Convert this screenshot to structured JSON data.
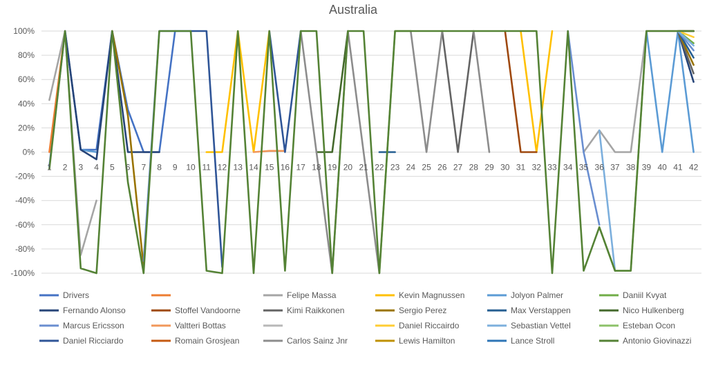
{
  "chart_data": {
    "type": "line",
    "title": "Australia",
    "xlabel": "",
    "ylabel": "",
    "ylim": [
      -100,
      100
    ],
    "yticks": [
      "100%",
      "80%",
      "60%",
      "40%",
      "20%",
      "0%",
      "-20%",
      "-40%",
      "-60%",
      "-80%",
      "-100%"
    ],
    "ytick_values": [
      100,
      80,
      60,
      40,
      20,
      0,
      -20,
      -40,
      -60,
      -80,
      -100
    ],
    "categories": [
      "1",
      "2",
      "3",
      "4",
      "5",
      "6",
      "7",
      "8",
      "9",
      "10",
      "11",
      "12",
      "13",
      "14",
      "15",
      "16",
      "17",
      "18",
      "19",
      "20",
      "21",
      "22",
      "23",
      "24",
      "25",
      "26",
      "27",
      "28",
      "29",
      "30",
      "31",
      "32",
      "33",
      "34",
      "35",
      "36",
      "37",
      "38",
      "39",
      "40",
      "41",
      "42"
    ],
    "grid": true,
    "legend_position": "bottom",
    "series": [
      {
        "name": "Drivers",
        "color": "#4472C4",
        "values": [
          -12,
          100,
          2,
          2,
          100,
          35,
          0,
          0,
          100,
          100,
          null,
          null,
          null,
          null,
          null,
          null,
          null,
          null,
          null,
          null,
          null,
          null,
          null,
          null,
          null,
          null,
          null,
          null,
          null,
          null,
          null,
          null,
          null,
          null,
          null,
          null,
          null,
          null,
          null,
          null,
          null,
          null
        ]
      },
      {
        "name": "",
        "color": "#ED7D31",
        "values": [
          0,
          100,
          null,
          null,
          null,
          null,
          null,
          null,
          null,
          null,
          null,
          null,
          null,
          null,
          null,
          null,
          null,
          null,
          null,
          null,
          null,
          null,
          null,
          null,
          null,
          null,
          null,
          null,
          null,
          null,
          null,
          null,
          null,
          null,
          null,
          null,
          null,
          null,
          null,
          null,
          null,
          null
        ]
      },
      {
        "name": "Felipe Massa",
        "color": "#A5A5A5",
        "values": [
          43,
          100,
          -85,
          -40,
          null,
          null,
          null,
          null,
          null,
          null,
          null,
          null,
          null,
          null,
          null,
          null,
          null,
          null,
          null,
          null,
          null,
          null,
          null,
          null,
          null,
          null,
          null,
          null,
          null,
          null,
          null,
          null,
          null,
          null,
          0,
          18,
          0,
          0,
          100,
          100,
          100,
          100
        ]
      },
      {
        "name": "Kevin Magnussen",
        "color": "#FFC000",
        "values": [
          null,
          null,
          null,
          null,
          null,
          null,
          null,
          null,
          null,
          null,
          0,
          0,
          100,
          0,
          100,
          null,
          null,
          null,
          null,
          null,
          null,
          null,
          null,
          null,
          null,
          null,
          null,
          null,
          null,
          null,
          100,
          0,
          100,
          null,
          null,
          null,
          null,
          null,
          null,
          null,
          null,
          null
        ]
      },
      {
        "name": "Jolyon Palmer",
        "color": "#5B9BD5",
        "values": [
          null,
          null,
          2,
          0,
          null,
          null,
          null,
          null,
          null,
          null,
          null,
          null,
          null,
          null,
          null,
          null,
          null,
          null,
          null,
          null,
          null,
          null,
          null,
          null,
          null,
          null,
          null,
          null,
          null,
          null,
          null,
          null,
          null,
          null,
          null,
          null,
          null,
          null,
          100,
          0,
          100,
          0
        ]
      },
      {
        "name": "Daniil Kvyat",
        "color": "#70AD47",
        "values": [
          null,
          null,
          null,
          null,
          null,
          null,
          null,
          null,
          null,
          null,
          null,
          null,
          null,
          null,
          null,
          null,
          null,
          null,
          null,
          null,
          null,
          null,
          null,
          null,
          null,
          null,
          null,
          null,
          null,
          null,
          null,
          null,
          null,
          null,
          null,
          null,
          null,
          null,
          null,
          null,
          100,
          90
        ]
      },
      {
        "name": "Fernando Alonso",
        "color": "#264478",
        "values": [
          null,
          100,
          2,
          -6,
          100,
          0,
          0,
          0,
          null,
          100,
          null,
          -95,
          null,
          null,
          null,
          null,
          null,
          null,
          null,
          null,
          null,
          null,
          null,
          null,
          null,
          null,
          null,
          null,
          null,
          null,
          null,
          null,
          null,
          null,
          null,
          null,
          null,
          null,
          null,
          null,
          100,
          58
        ]
      },
      {
        "name": "Stoffel Vandoorne",
        "color": "#9E480E",
        "values": [
          null,
          null,
          null,
          null,
          null,
          null,
          null,
          null,
          null,
          null,
          null,
          null,
          null,
          null,
          null,
          null,
          null,
          null,
          null,
          null,
          null,
          null,
          null,
          null,
          null,
          null,
          null,
          null,
          null,
          100,
          0,
          0,
          null,
          null,
          null,
          null,
          null,
          null,
          null,
          null,
          100,
          100
        ]
      },
      {
        "name": "Kimi Raikkonen",
        "color": "#636363",
        "values": [
          null,
          null,
          null,
          null,
          null,
          null,
          null,
          null,
          null,
          null,
          null,
          null,
          null,
          null,
          null,
          null,
          null,
          null,
          null,
          null,
          null,
          null,
          null,
          null,
          null,
          100,
          0,
          100,
          null,
          null,
          null,
          null,
          null,
          null,
          null,
          null,
          null,
          null,
          null,
          null,
          100,
          65
        ]
      },
      {
        "name": "Sergio Perez",
        "color": "#997300",
        "values": [
          null,
          null,
          null,
          null,
          100,
          30,
          -95,
          null,
          null,
          null,
          null,
          null,
          null,
          null,
          null,
          null,
          null,
          null,
          null,
          null,
          null,
          null,
          null,
          null,
          null,
          null,
          null,
          null,
          null,
          null,
          null,
          null,
          null,
          null,
          null,
          null,
          null,
          null,
          null,
          null,
          100,
          72
        ]
      },
      {
        "name": "Max Verstappen",
        "color": "#255E91",
        "values": [
          null,
          null,
          null,
          null,
          null,
          null,
          null,
          null,
          null,
          null,
          null,
          null,
          null,
          null,
          null,
          null,
          null,
          null,
          null,
          null,
          null,
          0,
          0,
          null,
          null,
          null,
          null,
          null,
          null,
          null,
          null,
          null,
          null,
          null,
          null,
          null,
          null,
          null,
          null,
          null,
          100,
          78
        ]
      },
      {
        "name": "Nico Hulkenberg",
        "color": "#43682B",
        "values": [
          null,
          null,
          null,
          null,
          null,
          null,
          null,
          null,
          null,
          null,
          null,
          null,
          null,
          null,
          null,
          null,
          null,
          0,
          0,
          100,
          null,
          null,
          null,
          null,
          null,
          null,
          null,
          null,
          null,
          null,
          null,
          null,
          null,
          null,
          null,
          null,
          null,
          null,
          null,
          null,
          100,
          100
        ]
      },
      {
        "name": "Marcus Ericsson",
        "color": "#698ED0",
        "values": [
          null,
          null,
          null,
          null,
          null,
          null,
          -90,
          100,
          100,
          null,
          null,
          null,
          null,
          null,
          null,
          null,
          null,
          null,
          null,
          null,
          null,
          null,
          null,
          null,
          null,
          null,
          null,
          null,
          null,
          null,
          null,
          null,
          null,
          100,
          0,
          -60,
          null,
          null,
          null,
          null,
          100,
          84
        ]
      },
      {
        "name": "Valtteri Bottas",
        "color": "#F1975A",
        "values": [
          null,
          null,
          null,
          null,
          null,
          null,
          null,
          null,
          null,
          null,
          null,
          null,
          null,
          0,
          1,
          1,
          null,
          null,
          null,
          null,
          null,
          null,
          null,
          null,
          null,
          null,
          null,
          null,
          null,
          null,
          null,
          null,
          null,
          null,
          null,
          null,
          null,
          null,
          null,
          null,
          null,
          null
        ]
      },
      {
        "name": "",
        "color": "#B7B7B7",
        "values": [
          null,
          null,
          null,
          null,
          null,
          null,
          null,
          null,
          null,
          null,
          null,
          null,
          null,
          null,
          null,
          null,
          null,
          null,
          null,
          null,
          null,
          null,
          null,
          null,
          null,
          null,
          null,
          null,
          null,
          null,
          null,
          null,
          null,
          null,
          null,
          null,
          null,
          null,
          null,
          null,
          null,
          null
        ]
      },
      {
        "name": "Daniel Riccairdo",
        "color": "#FFCD33",
        "values": [
          null,
          null,
          null,
          null,
          null,
          null,
          null,
          null,
          null,
          null,
          null,
          null,
          null,
          null,
          null,
          null,
          null,
          null,
          null,
          null,
          null,
          null,
          null,
          null,
          null,
          null,
          null,
          null,
          null,
          null,
          null,
          null,
          null,
          null,
          null,
          null,
          null,
          null,
          null,
          null,
          100,
          95
        ]
      },
      {
        "name": "Sebastian Vettel",
        "color": "#7CAFDD",
        "values": [
          null,
          null,
          null,
          null,
          null,
          null,
          null,
          null,
          null,
          null,
          null,
          null,
          null,
          null,
          null,
          null,
          null,
          null,
          null,
          null,
          null,
          null,
          null,
          null,
          null,
          null,
          null,
          null,
          null,
          null,
          null,
          null,
          null,
          null,
          null,
          18,
          -98,
          null,
          null,
          null,
          100,
          88
        ]
      },
      {
        "name": "Esteban Ocon",
        "color": "#8CC168",
        "values": [
          null,
          null,
          null,
          null,
          null,
          null,
          null,
          null,
          null,
          null,
          null,
          null,
          null,
          null,
          null,
          null,
          null,
          null,
          null,
          null,
          null,
          -100,
          100,
          100,
          null,
          null,
          null,
          null,
          null,
          null,
          null,
          null,
          null,
          null,
          null,
          -62,
          -98,
          -98,
          100,
          null,
          null,
          null
        ]
      },
      {
        "name": "Daniel Ricciardo",
        "color": "#2F5597",
        "values": [
          null,
          null,
          null,
          null,
          null,
          null,
          null,
          null,
          null,
          100,
          100,
          -95,
          null,
          null,
          100,
          0,
          100,
          null,
          null,
          null,
          null,
          null,
          null,
          null,
          null,
          null,
          null,
          null,
          null,
          null,
          null,
          null,
          null,
          null,
          null,
          null,
          null,
          null,
          null,
          null,
          null,
          null
        ]
      },
      {
        "name": "Romain Grosjean",
        "color": "#C55A11",
        "values": [
          null,
          null,
          null,
          null,
          null,
          null,
          null,
          null,
          null,
          null,
          null,
          null,
          null,
          null,
          null,
          null,
          null,
          null,
          null,
          null,
          null,
          null,
          null,
          null,
          null,
          null,
          null,
          null,
          null,
          null,
          null,
          null,
          null,
          null,
          null,
          null,
          null,
          null,
          null,
          null,
          null,
          null
        ]
      },
      {
        "name": "Carlos Sainz Jnr",
        "color": "#8C8C8C",
        "values": [
          null,
          null,
          null,
          null,
          null,
          null,
          null,
          null,
          null,
          null,
          null,
          null,
          null,
          null,
          null,
          null,
          100,
          0,
          -100,
          100,
          0,
          -100,
          null,
          100,
          0,
          100,
          null,
          100,
          0,
          null,
          null,
          null,
          null,
          null,
          null,
          null,
          null,
          null,
          null,
          null,
          null,
          null
        ]
      },
      {
        "name": "Lewis Hamilton",
        "color": "#BF9000",
        "values": [
          null,
          null,
          null,
          null,
          null,
          null,
          null,
          null,
          null,
          null,
          null,
          null,
          null,
          null,
          null,
          null,
          null,
          null,
          null,
          null,
          null,
          null,
          null,
          null,
          null,
          null,
          null,
          null,
          null,
          null,
          null,
          null,
          null,
          null,
          null,
          null,
          null,
          null,
          null,
          null,
          null,
          null
        ]
      },
      {
        "name": "Lance Stroll",
        "color": "#2E75B6",
        "values": [
          null,
          null,
          null,
          null,
          null,
          null,
          null,
          null,
          null,
          null,
          null,
          null,
          null,
          null,
          null,
          null,
          null,
          null,
          null,
          null,
          null,
          null,
          null,
          null,
          null,
          null,
          null,
          null,
          null,
          null,
          null,
          null,
          null,
          null,
          null,
          null,
          null,
          null,
          null,
          null,
          null,
          null
        ]
      },
      {
        "name": "Antonio Giovinazzi",
        "color": "#548235",
        "values": [
          -14,
          100,
          -96,
          -100,
          100,
          -25,
          -100,
          100,
          100,
          100,
          -98,
          -100,
          100,
          -100,
          100,
          -98,
          100,
          100,
          -100,
          100,
          100,
          -100,
          100,
          100,
          100,
          100,
          100,
          100,
          100,
          100,
          100,
          100,
          -100,
          100,
          -98,
          -62,
          -98,
          -98,
          100,
          100,
          100,
          100
        ]
      }
    ]
  }
}
